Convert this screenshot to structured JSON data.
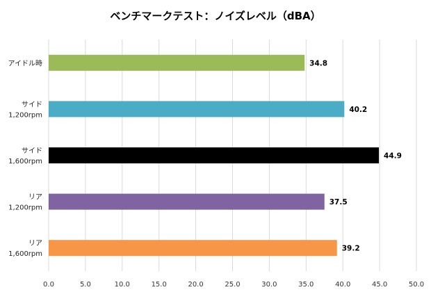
{
  "chart_data": {
    "type": "bar",
    "orientation": "horizontal",
    "title": "ベンチマークテスト：ノイズレベル（dBA）",
    "xlabel": "",
    "ylabel": "",
    "xlim": [
      0,
      50
    ],
    "xticks": [
      0,
      5,
      10,
      15,
      20,
      25,
      30,
      35,
      40,
      45,
      50
    ],
    "xtick_labels": [
      "0.0",
      "5.0",
      "10.0",
      "15.0",
      "20.0",
      "25.0",
      "30.0",
      "35.0",
      "40.0",
      "45.0",
      "50.0"
    ],
    "grid": true,
    "legend": "none",
    "categories": [
      {
        "lines": [
          "アイドル時"
        ]
      },
      {
        "lines": [
          "サイド",
          "1,200rpm"
        ]
      },
      {
        "lines": [
          "サイド",
          "1,600rpm"
        ]
      },
      {
        "lines": [
          "リア",
          "1,200rpm"
        ]
      },
      {
        "lines": [
          "リア",
          "1,600rpm"
        ]
      }
    ],
    "values": [
      34.8,
      40.2,
      44.9,
      37.5,
      39.2
    ],
    "value_labels": [
      "34.8",
      "40.2",
      "44.9",
      "37.5",
      "39.2"
    ],
    "colors": [
      "#9bbb59",
      "#4bacc6",
      "#000000",
      "#8064a2",
      "#f79646"
    ]
  }
}
